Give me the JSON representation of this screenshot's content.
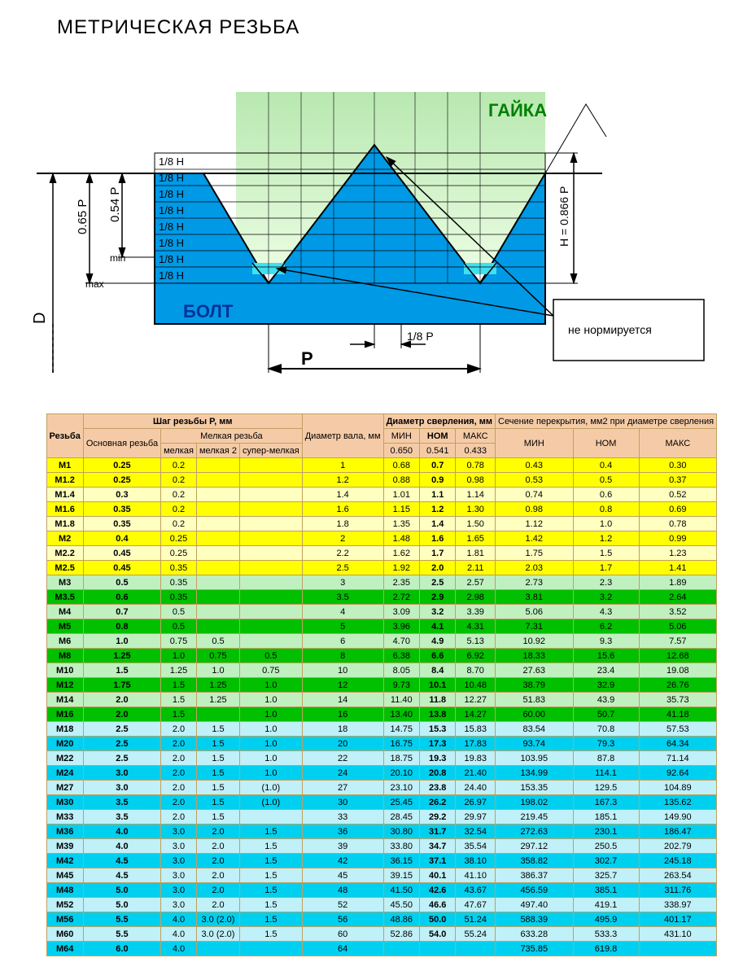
{
  "title": "МЕТРИЧЕСКАЯ РЕЗЬБА",
  "diagram": {
    "nut_label": "ГАЙКА",
    "bolt_label": "БОЛТ",
    "note": "не нормируется",
    "h_rows": [
      "1/8 H",
      "1/8 H",
      "1/8 H",
      "1/8 H",
      "1/8 H",
      "1/8 H",
      "1/8 H",
      "1/8 H"
    ],
    "min": "min",
    "max": "max",
    "p065": "0.65 P",
    "p054": "0.54 P",
    "h0866": "H = 0.866 P",
    "D": "D",
    "P": "P",
    "p18": "1/8 P",
    "colors": {
      "bolt": "#0099e6",
      "nut_top": "#c0e8c0",
      "nut_bot": "#e0f8d0",
      "note_border": "#000000"
    }
  },
  "table": {
    "headers": {
      "thread": "Резьба",
      "pitch_group": "Шаг резьбы P, мм",
      "main": "Основная резьба",
      "fine_group": "Мелкая резьба",
      "fine1": "мелкая",
      "fine2": "мелкая 2",
      "fine3": "супер-мелкая",
      "shaft": "Диаметр вала, мм",
      "drill_group": "Диаметр сверления, мм",
      "sect_group": "Сечение перекрытия, мм2 при диаметре сверления",
      "min": "МИН",
      "nom": "НОМ",
      "max": "МАКС",
      "c1": "0.650",
      "c2": "0.541",
      "c3": "0.433"
    },
    "colors": {
      "yellow_bold": "#ffff00",
      "yellow_light": "#ffffc0",
      "green_bold": "#00c000",
      "green_light": "#c0f0c0",
      "cyan_bold": "#00d0f0",
      "cyan_light": "#c0f0f8",
      "header": "#f5cba7"
    },
    "rows": [
      {
        "pref": 1,
        "c": "y",
        "n": "M1",
        "v": [
          "0.25",
          "0.2",
          "",
          "",
          "1",
          "0.68",
          "0.7",
          "0.78",
          "0.43",
          "0.4",
          "0.30"
        ]
      },
      {
        "pref": 1,
        "c": "y",
        "n": "M1.2",
        "v": [
          "0.25",
          "0.2",
          "",
          "",
          "1.2",
          "0.88",
          "0.9",
          "0.98",
          "0.53",
          "0.5",
          "0.37"
        ]
      },
      {
        "pref": 0,
        "c": "y",
        "n": "M1.4",
        "v": [
          "0.3",
          "0.2",
          "",
          "",
          "1.4",
          "1.01",
          "1.1",
          "1.14",
          "0.74",
          "0.6",
          "0.52"
        ]
      },
      {
        "pref": 1,
        "c": "y",
        "n": "M1.6",
        "v": [
          "0.35",
          "0.2",
          "",
          "",
          "1.6",
          "1.15",
          "1.2",
          "1.30",
          "0.98",
          "0.8",
          "0.69"
        ]
      },
      {
        "pref": 0,
        "c": "y",
        "n": "M1.8",
        "v": [
          "0.35",
          "0.2",
          "",
          "",
          "1.8",
          "1.35",
          "1.4",
          "1.50",
          "1.12",
          "1.0",
          "0.78"
        ]
      },
      {
        "pref": 1,
        "c": "y",
        "n": "M2",
        "v": [
          "0.4",
          "0.25",
          "",
          "",
          "2",
          "1.48",
          "1.6",
          "1.65",
          "1.42",
          "1.2",
          "0.99"
        ]
      },
      {
        "pref": 0,
        "c": "y",
        "n": "M2.2",
        "v": [
          "0.45",
          "0.25",
          "",
          "",
          "2.2",
          "1.62",
          "1.7",
          "1.81",
          "1.75",
          "1.5",
          "1.23"
        ]
      },
      {
        "pref": 1,
        "c": "y",
        "n": "M2.5",
        "v": [
          "0.45",
          "0.35",
          "",
          "",
          "2.5",
          "1.92",
          "2.0",
          "2.11",
          "2.03",
          "1.7",
          "1.41"
        ]
      },
      {
        "pref": 0,
        "c": "g",
        "n": "M3",
        "v": [
          "0.5",
          "0.35",
          "",
          "",
          "3",
          "2.35",
          "2.5",
          "2.57",
          "2.73",
          "2.3",
          "1.89"
        ]
      },
      {
        "pref": 1,
        "c": "g",
        "n": "M3.5",
        "v": [
          "0.6",
          "0.35",
          "",
          "",
          "3.5",
          "2.72",
          "2.9",
          "2.98",
          "3.81",
          "3.2",
          "2.64"
        ]
      },
      {
        "pref": 0,
        "c": "g",
        "n": "M4",
        "v": [
          "0.7",
          "0.5",
          "",
          "",
          "4",
          "3.09",
          "3.2",
          "3.39",
          "5.06",
          "4.3",
          "3.52"
        ]
      },
      {
        "pref": 1,
        "c": "g",
        "n": "M5",
        "v": [
          "0.8",
          "0.5",
          "",
          "",
          "5",
          "3.96",
          "4.1",
          "4.31",
          "7.31",
          "6.2",
          "5.06"
        ]
      },
      {
        "pref": 0,
        "c": "g",
        "n": "M6",
        "v": [
          "1.0",
          "0.75",
          "0.5",
          "",
          "6",
          "4.70",
          "4.9",
          "5.13",
          "10.92",
          "9.3",
          "7.57"
        ]
      },
      {
        "pref": 1,
        "c": "g",
        "n": "M8",
        "v": [
          "1.25",
          "1.0",
          "0.75",
          "0.5",
          "8",
          "6.38",
          "6.6",
          "6.92",
          "18.33",
          "15.6",
          "12.68"
        ]
      },
      {
        "pref": 0,
        "c": "g",
        "n": "M10",
        "v": [
          "1.5",
          "1.25",
          "1.0",
          "0.75",
          "10",
          "8.05",
          "8.4",
          "8.70",
          "27.63",
          "23.4",
          "19.08"
        ]
      },
      {
        "pref": 1,
        "c": "g",
        "n": "M12",
        "v": [
          "1.75",
          "1.5",
          "1.25",
          "1.0",
          "12",
          "9.73",
          "10.1",
          "10.48",
          "38.79",
          "32.9",
          "26.76"
        ]
      },
      {
        "pref": 0,
        "c": "g",
        "n": "M14",
        "v": [
          "2.0",
          "1.5",
          "1.25",
          "1.0",
          "14",
          "11.40",
          "11.8",
          "12.27",
          "51.83",
          "43.9",
          "35.73"
        ]
      },
      {
        "pref": 1,
        "c": "g",
        "n": "M16",
        "v": [
          "2.0",
          "1.5",
          "",
          "1.0",
          "16",
          "13.40",
          "13.8",
          "14.27",
          "60.00",
          "50.7",
          "41.18"
        ]
      },
      {
        "pref": 0,
        "c": "c",
        "n": "M18",
        "v": [
          "2.5",
          "2.0",
          "1.5",
          "1.0",
          "18",
          "14.75",
          "15.3",
          "15.83",
          "83.54",
          "70.8",
          "57.53"
        ]
      },
      {
        "pref": 1,
        "c": "c",
        "n": "M20",
        "v": [
          "2.5",
          "2.0",
          "1.5",
          "1.0",
          "20",
          "16.75",
          "17.3",
          "17.83",
          "93.74",
          "79.3",
          "64.34"
        ]
      },
      {
        "pref": 0,
        "c": "c",
        "n": "M22",
        "v": [
          "2.5",
          "2.0",
          "1.5",
          "1.0",
          "22",
          "18.75",
          "19.3",
          "19.83",
          "103.95",
          "87.8",
          "71.14"
        ]
      },
      {
        "pref": 1,
        "c": "c",
        "n": "M24",
        "v": [
          "3.0",
          "2.0",
          "1.5",
          "1.0",
          "24",
          "20.10",
          "20.8",
          "21.40",
          "134.99",
          "114.1",
          "92.64"
        ]
      },
      {
        "pref": 0,
        "c": "c",
        "n": "M27",
        "v": [
          "3.0",
          "2.0",
          "1.5",
          "(1.0)",
          "27",
          "23.10",
          "23.8",
          "24.40",
          "153.35",
          "129.5",
          "104.89"
        ]
      },
      {
        "pref": 1,
        "c": "c",
        "n": "M30",
        "v": [
          "3.5",
          "2.0",
          "1.5",
          "(1.0)",
          "30",
          "25.45",
          "26.2",
          "26.97",
          "198.02",
          "167.3",
          "135.62"
        ]
      },
      {
        "pref": 0,
        "c": "c",
        "n": "M33",
        "v": [
          "3.5",
          "2.0",
          "1.5",
          "",
          "33",
          "28.45",
          "29.2",
          "29.97",
          "219.45",
          "185.1",
          "149.90"
        ]
      },
      {
        "pref": 1,
        "c": "c",
        "n": "M36",
        "v": [
          "4.0",
          "3.0",
          "2.0",
          "1.5",
          "36",
          "30.80",
          "31.7",
          "32.54",
          "272.63",
          "230.1",
          "186.47"
        ]
      },
      {
        "pref": 0,
        "c": "c",
        "n": "M39",
        "v": [
          "4.0",
          "3.0",
          "2.0",
          "1.5",
          "39",
          "33.80",
          "34.7",
          "35.54",
          "297.12",
          "250.5",
          "202.79"
        ]
      },
      {
        "pref": 1,
        "c": "c",
        "n": "M42",
        "v": [
          "4.5",
          "3.0",
          "2.0",
          "1.5",
          "42",
          "36.15",
          "37.1",
          "38.10",
          "358.82",
          "302.7",
          "245.18"
        ]
      },
      {
        "pref": 0,
        "c": "c",
        "n": "M45",
        "v": [
          "4.5",
          "3.0",
          "2.0",
          "1.5",
          "45",
          "39.15",
          "40.1",
          "41.10",
          "386.37",
          "325.7",
          "263.54"
        ]
      },
      {
        "pref": 1,
        "c": "c",
        "n": "M48",
        "v": [
          "5.0",
          "3.0",
          "2.0",
          "1.5",
          "48",
          "41.50",
          "42.6",
          "43.67",
          "456.59",
          "385.1",
          "311.76"
        ]
      },
      {
        "pref": 0,
        "c": "c",
        "n": "M52",
        "v": [
          "5.0",
          "3.0",
          "2.0",
          "1.5",
          "52",
          "45.50",
          "46.6",
          "47.67",
          "497.40",
          "419.1",
          "338.97"
        ]
      },
      {
        "pref": 1,
        "c": "c",
        "n": "M56",
        "v": [
          "5.5",
          "4.0",
          "3.0 (2.0)",
          "1.5",
          "56",
          "48.86",
          "50.0",
          "51.24",
          "588.39",
          "495.9",
          "401.17"
        ]
      },
      {
        "pref": 0,
        "c": "c",
        "n": "M60",
        "v": [
          "5.5",
          "4.0",
          "3.0 (2.0)",
          "1.5",
          "60",
          "52.86",
          "54.0",
          "55.24",
          "633.28",
          "533.3",
          "431.10"
        ]
      },
      {
        "pref": 1,
        "c": "c",
        "n": "M64",
        "v": [
          "6.0",
          "4.0",
          "",
          "",
          "64",
          "",
          "",
          "",
          "735.85",
          "619.8",
          ""
        ]
      }
    ]
  }
}
